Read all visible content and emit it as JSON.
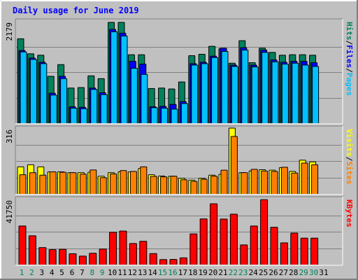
{
  "title": "Daily usage for June 2019",
  "chart_data": {
    "type": "bar",
    "categories": [
      "1",
      "2",
      "3",
      "4",
      "5",
      "6",
      "7",
      "8",
      "9",
      "10",
      "11",
      "12",
      "13",
      "14",
      "15",
      "16",
      "17",
      "18",
      "19",
      "20",
      "21",
      "22",
      "23",
      "24",
      "25",
      "26",
      "27",
      "28",
      "29",
      "30",
      "31"
    ],
    "weekend_days": [
      "1",
      "2",
      "8",
      "9",
      "15",
      "16",
      "22",
      "23",
      "29",
      "30"
    ],
    "colors": {
      "background": "#c0c0c0",
      "title": "#0000ff",
      "hits": "#00805c",
      "files": "#0000ff",
      "pages": "#00c0ff",
      "visits": "#ffff00",
      "sites": "#ff8000",
      "kbytes": "#ff0000",
      "weekday_label": "#000000",
      "weekend_label": "#00805c"
    },
    "panels": [
      {
        "id": "hits-files-pages",
        "y_max_label": "2179",
        "y_max": 2179,
        "right_labels": [
          {
            "text": "Hits",
            "color": "#00805c"
          },
          {
            "text": "Files",
            "color": "#0000ff"
          },
          {
            "text": "Pages",
            "color": "#00c0ff"
          }
        ],
        "series": [
          {
            "name": "Hits",
            "values": [
              1800,
              1480,
              1450,
              1000,
              1250,
              750,
              760,
              1010,
              950,
              2150,
              2150,
              1460,
              1460,
              740,
              750,
              730,
              880,
              1440,
              1470,
              1640,
              1590,
              1280,
              1760,
              1290,
              1600,
              1510,
              1450,
              1460,
              1460,
              1450,
              0
            ]
          },
          {
            "name": "Files",
            "values": [
              1550,
              1390,
              1300,
              640,
              1000,
              350,
              340,
              750,
              650,
              2000,
              1920,
              1320,
              1260,
              350,
              360,
              400,
              460,
              1270,
              1300,
              1430,
              1600,
              1240,
              1610,
              1240,
              1560,
              1350,
              1300,
              1320,
              1320,
              1290,
              0
            ]
          },
          {
            "name": "Pages",
            "values": [
              1520,
              1360,
              1270,
              600,
              950,
              320,
              310,
              720,
              610,
              1950,
              1860,
              1170,
              1040,
              330,
              320,
              300,
              420,
              1240,
              1270,
              1400,
              1530,
              1210,
              1560,
              1200,
              1510,
              1310,
              1260,
              1280,
              1240,
              1210,
              0
            ]
          }
        ]
      },
      {
        "id": "visits-sites",
        "y_max_label": "316",
        "y_max": 316,
        "right_labels": [
          {
            "text": "Visits",
            "color": "#ffff00"
          },
          {
            "text": "Sites",
            "color": "#ff8000"
          }
        ],
        "series": [
          {
            "name": "Visits",
            "values": [
              130,
              140,
              130,
              106,
              106,
              102,
              102,
              104,
              85,
              102,
              106,
              106,
              122,
              92,
              86,
              85,
              75,
              66,
              75,
              90,
              94,
              316,
              102,
              110,
              116,
              114,
              126,
              108,
              162,
              154,
              0
            ]
          },
          {
            "name": "Sites",
            "values": [
              92,
              102,
              90,
              106,
              104,
              102,
              95,
              115,
              78,
              96,
              112,
              108,
              130,
              84,
              82,
              85,
              68,
              60,
              70,
              85,
              114,
              276,
              102,
              118,
              110,
              108,
              128,
              100,
              148,
              140,
              0
            ]
          }
        ]
      },
      {
        "id": "kbytes",
        "y_max_label": "41750",
        "y_max": 41750,
        "right_labels": [
          {
            "text": "KBytes",
            "color": "#ff0000"
          }
        ],
        "series": [
          {
            "name": "KBytes",
            "values": [
              24500,
              18300,
              10800,
              9500,
              9700,
              6900,
              5400,
              7200,
              9900,
              20500,
              21300,
              13400,
              14800,
              7000,
              3200,
              3300,
              4300,
              19500,
              29000,
              38600,
              28900,
              32000,
              12500,
              24500,
              41200,
              23700,
              13800,
              20000,
              16800,
              16800,
              0
            ]
          }
        ]
      }
    ]
  }
}
